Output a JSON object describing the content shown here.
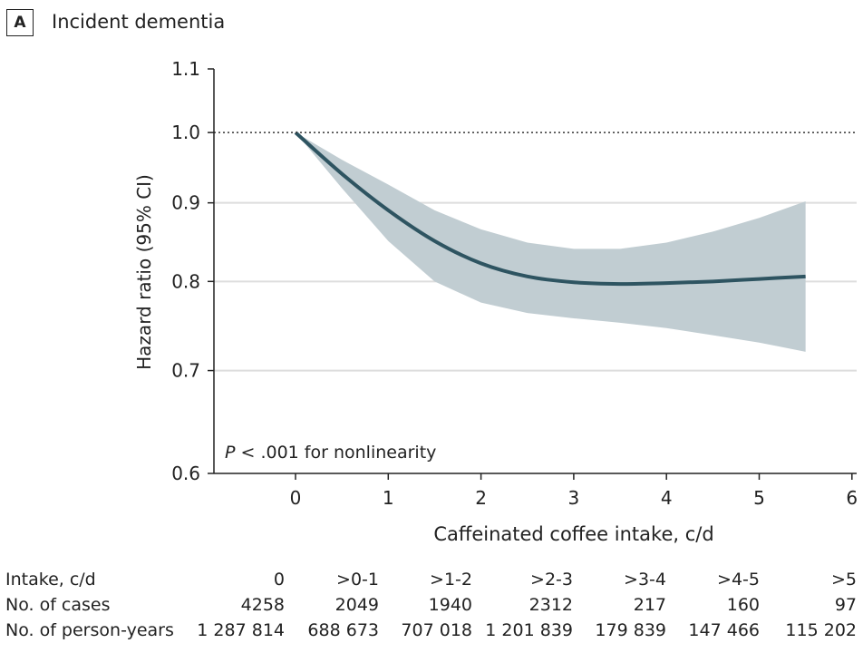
{
  "panel": {
    "letter": "A",
    "title": "Incident dementia"
  },
  "chart_data": {
    "type": "line",
    "title": "Incident dementia",
    "xlabel": "Caffeinated coffee intake, c/d",
    "ylabel": "Hazard ratio (95% CI)",
    "xlim": [
      -0.7,
      6
    ],
    "ylim": [
      0.6,
      1.1
    ],
    "yscale": "log",
    "xticks": [
      0,
      1,
      2,
      3,
      4,
      5,
      6
    ],
    "yticks": [
      0.6,
      0.7,
      0.8,
      0.9,
      1.0,
      1.1
    ],
    "ytick_labels": [
      "0.6",
      "0.7",
      "0.8",
      "0.9",
      "1.0",
      "1.1"
    ],
    "reference_line": 1.0,
    "grid": "horizontal at 0.7, 0.8, 0.9",
    "annotation": {
      "italic": "P",
      "text": " < .001 for nonlinearity"
    },
    "series": [
      {
        "x": [
          0,
          0.5,
          1,
          1.5,
          2,
          2.5,
          3,
          3.5,
          4,
          4.5,
          5,
          5.5
        ],
        "y": [
          1.0,
          0.94,
          0.89,
          0.85,
          0.822,
          0.806,
          0.799,
          0.797,
          0.798,
          0.8,
          0.803,
          0.806
        ],
        "lower": [
          1.0,
          0.92,
          0.85,
          0.8,
          0.775,
          0.763,
          0.757,
          0.752,
          0.746,
          0.738,
          0.73,
          0.72
        ],
        "upper": [
          1.0,
          0.96,
          0.925,
          0.89,
          0.865,
          0.848,
          0.84,
          0.84,
          0.848,
          0.862,
          0.88,
          0.902
        ]
      }
    ],
    "colors": {
      "line": "#2e5461",
      "band": "#c1cdd2",
      "grid": "#dddddd"
    }
  },
  "table": {
    "rows": [
      {
        "label": "Intake, c/d",
        "values": [
          "0",
          ">0-1",
          ">1-2",
          ">2-3",
          ">3-4",
          ">4-5",
          ">5"
        ]
      },
      {
        "label": "No. of cases",
        "values": [
          "4258",
          "2049",
          "1940",
          "2312",
          "217",
          "160",
          "97"
        ]
      },
      {
        "label": "No. of person-years",
        "values": [
          "1 287 814",
          "688 673",
          "707 018",
          "1 201 839",
          "179 839",
          "147 466",
          "115 202"
        ]
      }
    ]
  }
}
